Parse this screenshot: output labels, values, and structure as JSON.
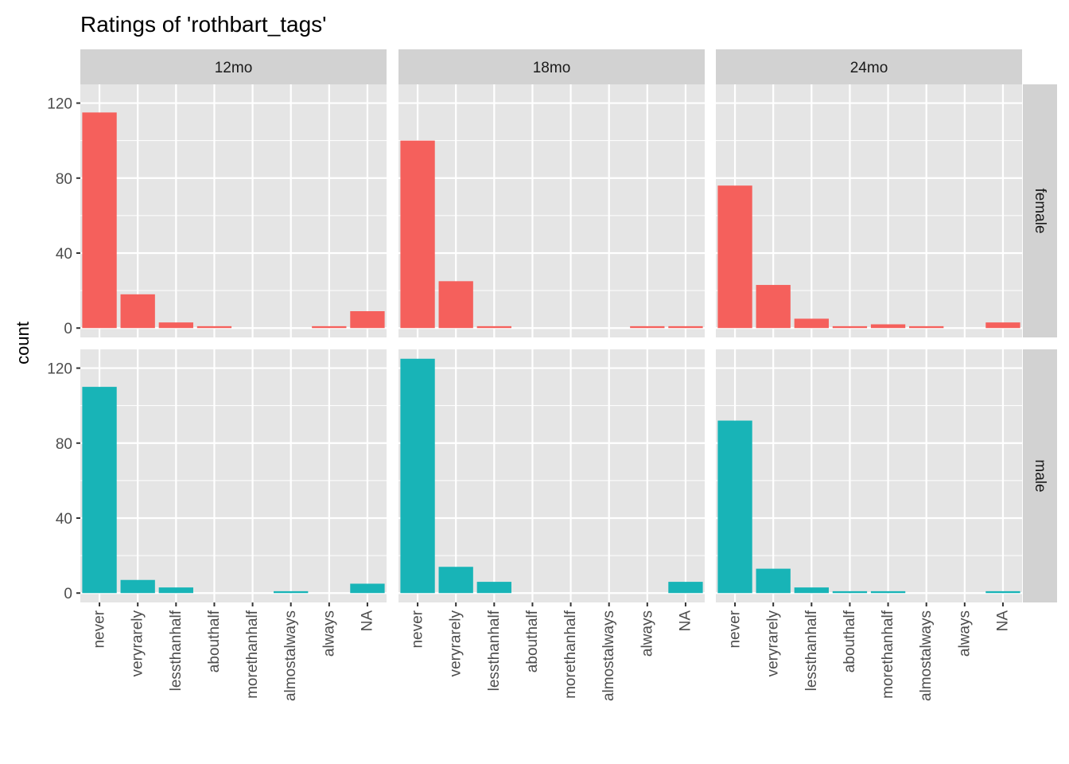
{
  "chart_data": {
    "type": "bar",
    "title": "Ratings of 'rothbart_tags'",
    "xlabel": "",
    "ylabel": "count",
    "ylim": [
      -5,
      130
    ],
    "yticks": [
      0,
      40,
      80,
      120
    ],
    "grid": true,
    "legend": "none",
    "categories": [
      "never",
      "veryrarely",
      "lessthanhalf",
      "abouthalf",
      "morethanhalf",
      "almostalways",
      "always",
      "NA"
    ],
    "columns": [
      "12mo",
      "18mo",
      "24mo"
    ],
    "rows": [
      "female",
      "male"
    ],
    "colors": {
      "female": "#F5605C",
      "male": "#18B4B7",
      "panel_bg": "#E5E5E5",
      "strip_bg": "#D2D2D2",
      "grid": "#FFFFFF"
    },
    "series": [
      {
        "name": "female",
        "panels": [
          {
            "column": "12mo",
            "values": [
              115,
              18,
              3,
              1,
              0,
              0,
              1,
              9
            ]
          },
          {
            "column": "18mo",
            "values": [
              100,
              25,
              1,
              0,
              0,
              0,
              1,
              1
            ]
          },
          {
            "column": "24mo",
            "values": [
              76,
              23,
              5,
              1,
              2,
              1,
              0,
              3
            ]
          }
        ]
      },
      {
        "name": "male",
        "panels": [
          {
            "column": "12mo",
            "values": [
              110,
              7,
              3,
              0,
              0,
              1,
              0,
              5
            ]
          },
          {
            "column": "18mo",
            "values": [
              125,
              14,
              6,
              0,
              0,
              0,
              0,
              6
            ]
          },
          {
            "column": "24mo",
            "values": [
              92,
              13,
              3,
              1,
              1,
              0,
              0,
              1
            ]
          }
        ]
      }
    ]
  }
}
